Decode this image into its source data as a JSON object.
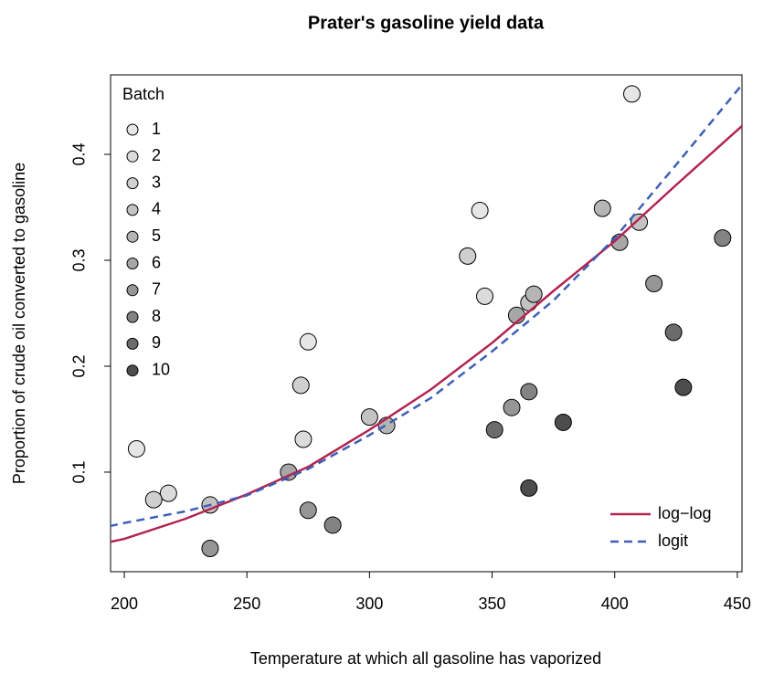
{
  "chart_data": {
    "type": "scatter",
    "title": "Prater's gasoline yield data",
    "xlabel": "Temperature at which all gasoline has vaporized",
    "ylabel": "Proportion of crude oil converted to gasoline",
    "x": [
      205,
      275,
      345,
      407,
      218,
      273,
      347,
      212,
      272,
      340,
      235,
      300,
      365,
      410,
      307,
      367,
      395,
      267,
      360,
      402,
      235,
      275,
      358,
      416,
      285,
      365,
      444,
      351,
      424,
      365,
      379,
      428
    ],
    "values": [
      0.122,
      0.223,
      0.347,
      0.457,
      0.08,
      0.131,
      0.266,
      0.074,
      0.182,
      0.304,
      0.069,
      0.152,
      0.26,
      0.336,
      0.144,
      0.268,
      0.349,
      0.1,
      0.248,
      0.317,
      0.028,
      0.064,
      0.161,
      0.278,
      0.05,
      0.176,
      0.321,
      0.14,
      0.232,
      0.085,
      0.147,
      0.18
    ],
    "batch": [
      1,
      1,
      1,
      1,
      2,
      2,
      2,
      3,
      3,
      3,
      4,
      4,
      4,
      4,
      5,
      5,
      5,
      6,
      6,
      6,
      7,
      7,
      7,
      7,
      8,
      8,
      8,
      9,
      9,
      10,
      10,
      10
    ],
    "legend_title": "Batch",
    "batches": [
      1,
      2,
      3,
      4,
      5,
      6,
      7,
      8,
      9,
      10
    ],
    "batch_colors": [
      "#e6e6e6",
      "#dbdbdb",
      "#cfcfcf",
      "#c3c3c3",
      "#b5b5b5",
      "#a7a7a7",
      "#969696",
      "#838383",
      "#6c6c6c",
      "#4d4d4d"
    ],
    "lines": [
      {
        "name": "log−log",
        "color": "#b2254f",
        "dashed": false,
        "x": [
          194,
          200,
          225,
          250,
          275,
          300,
          325,
          350,
          375,
          400,
          425,
          452
        ],
        "values": [
          0.034,
          0.037,
          0.056,
          0.079,
          0.105,
          0.14,
          0.178,
          0.222,
          0.271,
          0.318,
          0.371,
          0.427
        ]
      },
      {
        "name": "logit",
        "color": "#3e5eb8",
        "dashed": true,
        "x": [
          194,
          200,
          225,
          250,
          275,
          300,
          325,
          350,
          375,
          400,
          425,
          452
        ],
        "values": [
          0.049,
          0.052,
          0.063,
          0.078,
          0.103,
          0.135,
          0.17,
          0.214,
          0.262,
          0.321,
          0.39,
          0.466
        ]
      }
    ],
    "xlim": [
      194.4,
      451.9
    ],
    "ylim": [
      0.006,
      0.475
    ],
    "xticks": [
      200,
      250,
      300,
      350,
      400,
      450
    ],
    "yticks": [
      0.1,
      0.2,
      0.3,
      0.4
    ]
  }
}
